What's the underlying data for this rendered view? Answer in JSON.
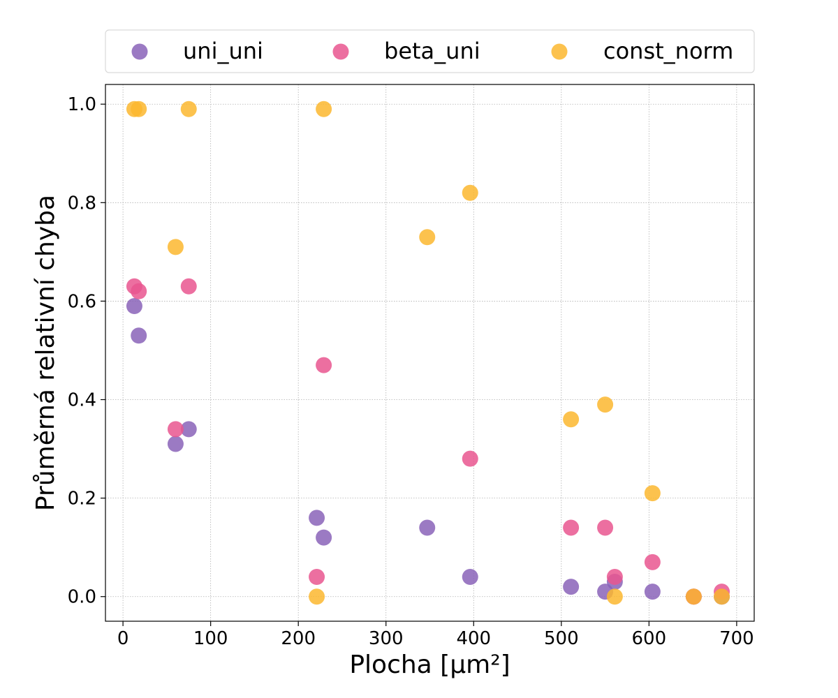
{
  "chart_data": {
    "type": "scatter",
    "title": "",
    "xlabel": "Plocha [µm²]",
    "ylabel": "Průměrná relativní chyba",
    "xlim": [
      -20,
      720
    ],
    "ylim": [
      -0.05,
      1.04
    ],
    "x_ticks": [
      0,
      100,
      200,
      300,
      400,
      500,
      600,
      700
    ],
    "x_tick_labels": [
      "0",
      "100",
      "200",
      "300",
      "400",
      "500",
      "600",
      "700"
    ],
    "y_ticks": [
      0.0,
      0.2,
      0.4,
      0.6,
      0.8,
      1.0
    ],
    "y_tick_labels": [
      "0.0",
      "0.2",
      "0.4",
      "0.6",
      "0.8",
      "1.0"
    ],
    "grid": true,
    "legend_position": "top",
    "series": [
      {
        "name": "uni_uni",
        "color": "#8a63b8",
        "points": [
          [
            13,
            0.59
          ],
          [
            18,
            0.53
          ],
          [
            60,
            0.31
          ],
          [
            75,
            0.34
          ],
          [
            221,
            0.16
          ],
          [
            229,
            0.12
          ],
          [
            347,
            0.14
          ],
          [
            396,
            0.04
          ],
          [
            511,
            0.02
          ],
          [
            550,
            0.01
          ],
          [
            561,
            0.03
          ],
          [
            604,
            0.01
          ],
          [
            651,
            0.0
          ],
          [
            683,
            0.0
          ]
        ]
      },
      {
        "name": "beta_uni",
        "color": "#e9568f",
        "points": [
          [
            13,
            0.63
          ],
          [
            18,
            0.62
          ],
          [
            60,
            0.34
          ],
          [
            75,
            0.63
          ],
          [
            221,
            0.04
          ],
          [
            229,
            0.47
          ],
          [
            396,
            0.28
          ],
          [
            511,
            0.14
          ],
          [
            550,
            0.14
          ],
          [
            561,
            0.04
          ],
          [
            604,
            0.07
          ],
          [
            651,
            0.0
          ],
          [
            683,
            0.01
          ]
        ]
      },
      {
        "name": "const_norm",
        "color": "#fbb72f",
        "points": [
          [
            13,
            0.99
          ],
          [
            18,
            0.99
          ],
          [
            60,
            0.71
          ],
          [
            75,
            0.99
          ],
          [
            221,
            0.0
          ],
          [
            229,
            0.99
          ],
          [
            347,
            0.73
          ],
          [
            396,
            0.82
          ],
          [
            511,
            0.36
          ],
          [
            550,
            0.39
          ],
          [
            561,
            0.0
          ],
          [
            604,
            0.21
          ],
          [
            651,
            0.0
          ],
          [
            683,
            0.0
          ]
        ]
      }
    ]
  }
}
